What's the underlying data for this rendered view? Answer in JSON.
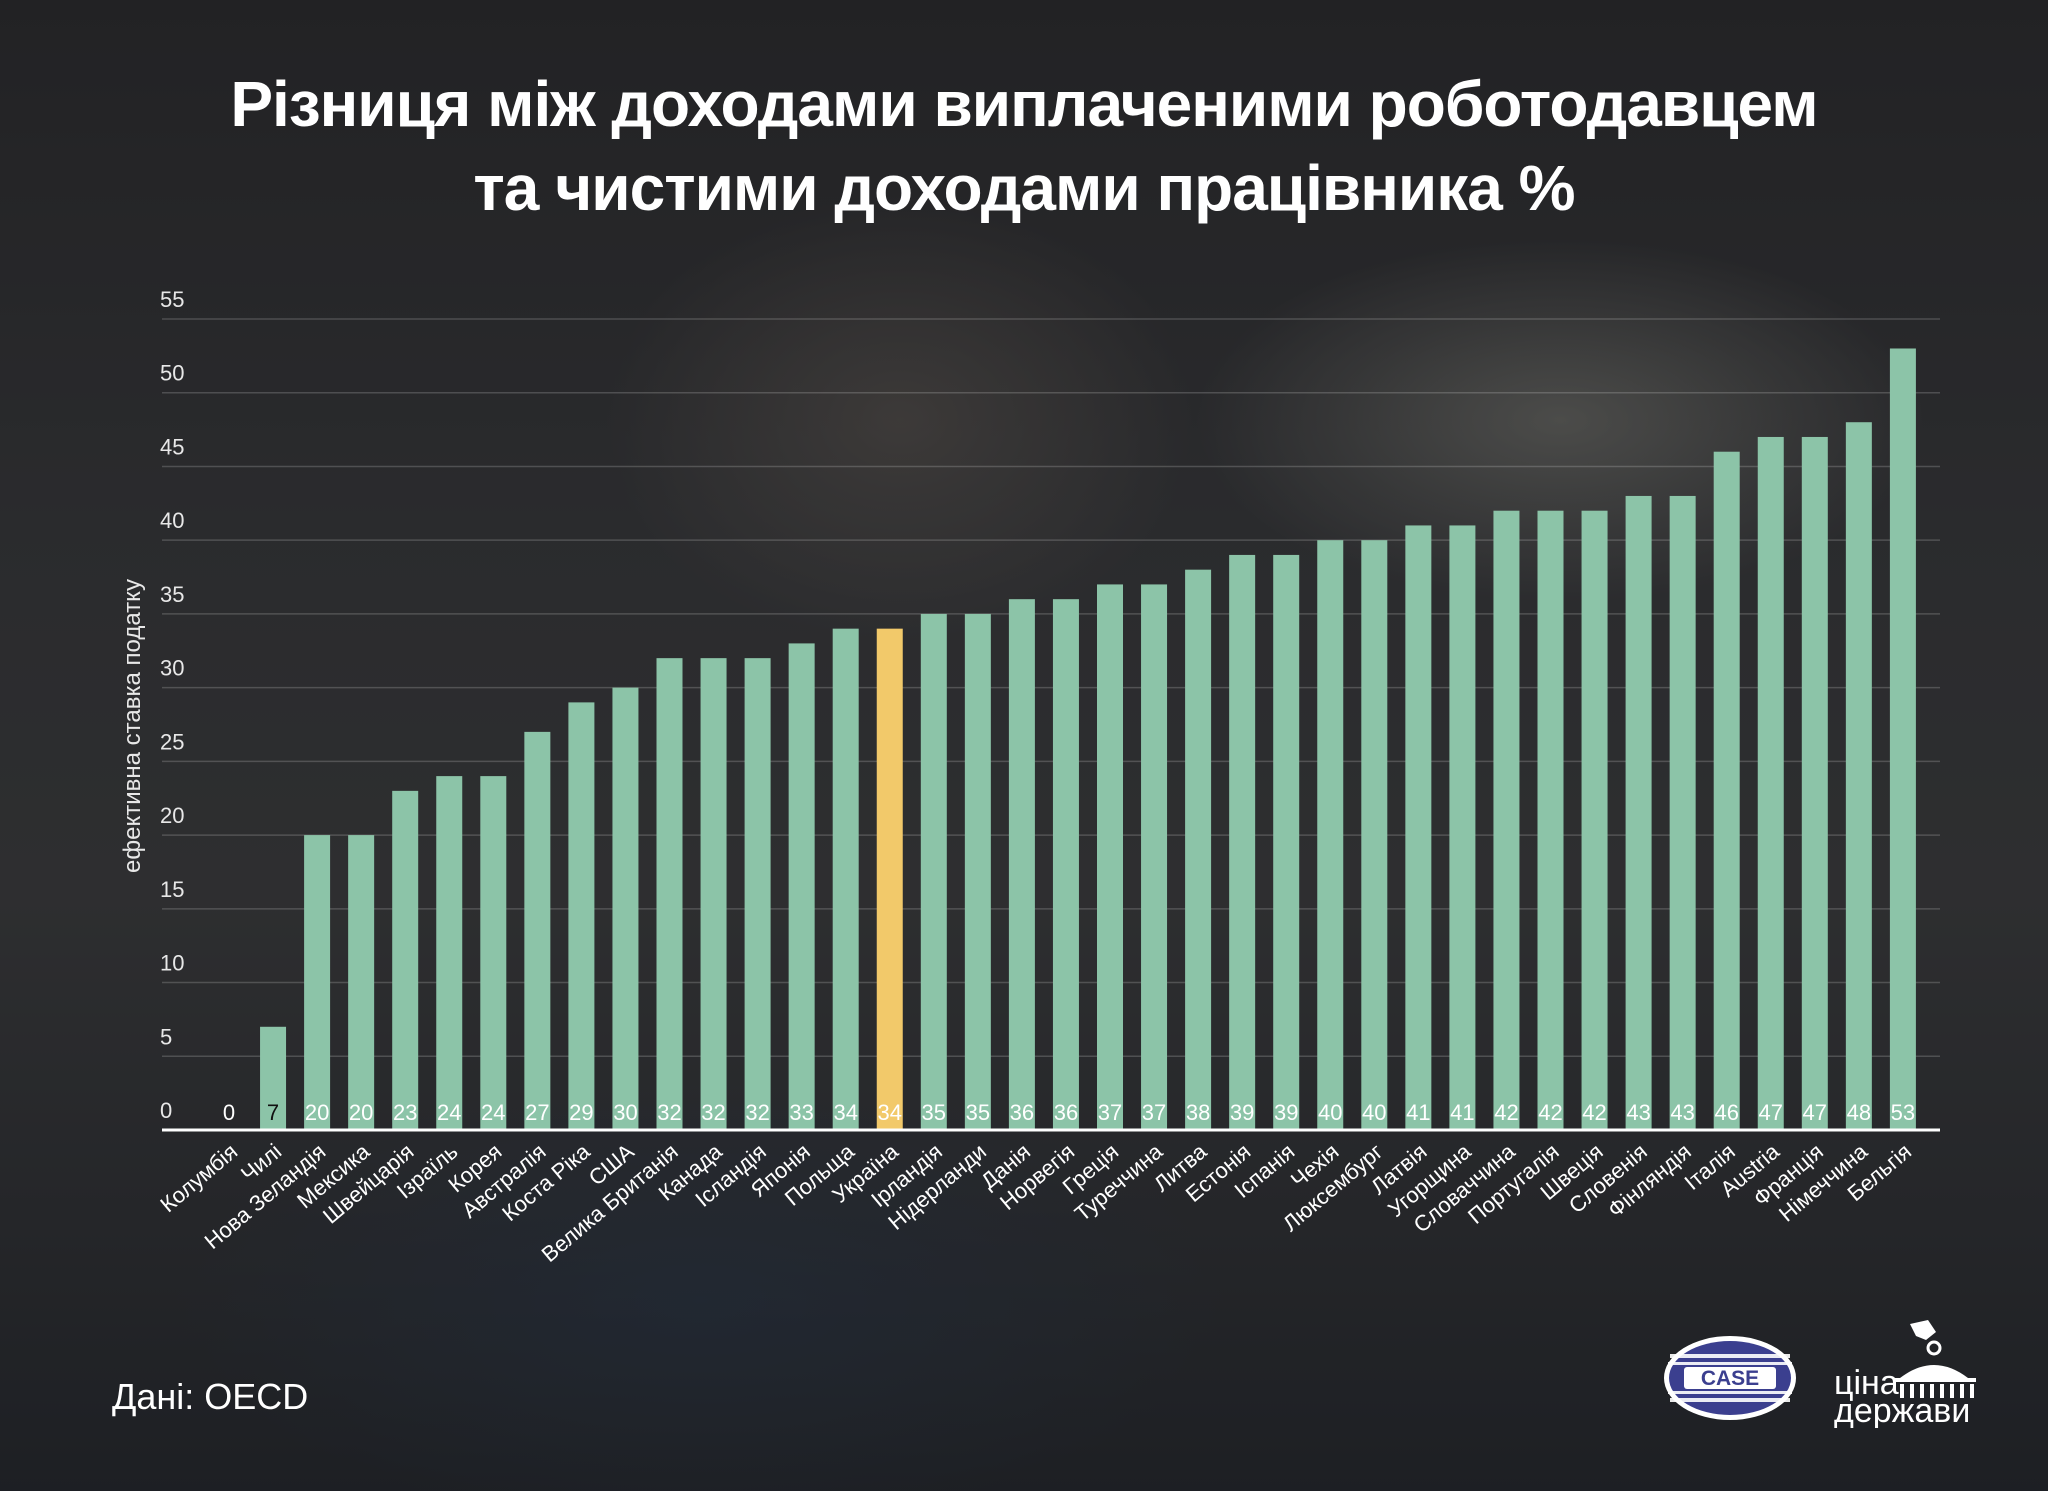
{
  "title": {
    "line1": "Різниця між доходами виплаченими роботодавцем",
    "line2": "та чистими доходами працівника %"
  },
  "source": "Дані: OECD",
  "logos": {
    "case": "CASE",
    "cina_line1": "ціна",
    "cina_line2": "держави"
  },
  "colors": {
    "bar": "#8cc4a8",
    "highlight": "#f2c96a",
    "grid": "rgba(255,255,255,0.18)",
    "axis": "#ffffff",
    "text": "#ffffff"
  },
  "chart_data": {
    "type": "bar",
    "title": "Різниця між доходами виплаченими роботодавцем та чистими доходами працівника %",
    "xlabel": "",
    "ylabel": "ефективна ставка податку",
    "ylim": [
      0,
      55
    ],
    "yticks": [
      0,
      5,
      10,
      15,
      20,
      25,
      30,
      35,
      40,
      45,
      50,
      55
    ],
    "grid": true,
    "highlight_category": "Україна",
    "categories": [
      "Колумбія",
      "Чилі",
      "Нова Зеландія",
      "Мексика",
      "Швейцарія",
      "Ізраїль",
      "Корея",
      "Австралія",
      "Коста Ріка",
      "США",
      "Велика Британія",
      "Канада",
      "Ісландія",
      "Японія",
      "Польща",
      "Україна",
      "Ірландія",
      "Нідерланди",
      "Данія",
      "Норвегія",
      "Греція",
      "Туреччина",
      "Литва",
      "Естонія",
      "Іспанія",
      "Чехія",
      "Люксембург",
      "Латвія",
      "Угорщина",
      "Словаччина",
      "Португалія",
      "Швеція",
      "Словенія",
      "Фінляндія",
      "Італія",
      "Austria",
      "Франція",
      "Німеччина",
      "Бельгія"
    ],
    "values": [
      0,
      7,
      20,
      20,
      23,
      24,
      24,
      27,
      29,
      30,
      32,
      32,
      32,
      33,
      34,
      34,
      35,
      35,
      36,
      36,
      37,
      37,
      38,
      39,
      39,
      40,
      40,
      41,
      41,
      42,
      42,
      42,
      43,
      43,
      46,
      47,
      47,
      48,
      53
    ]
  }
}
